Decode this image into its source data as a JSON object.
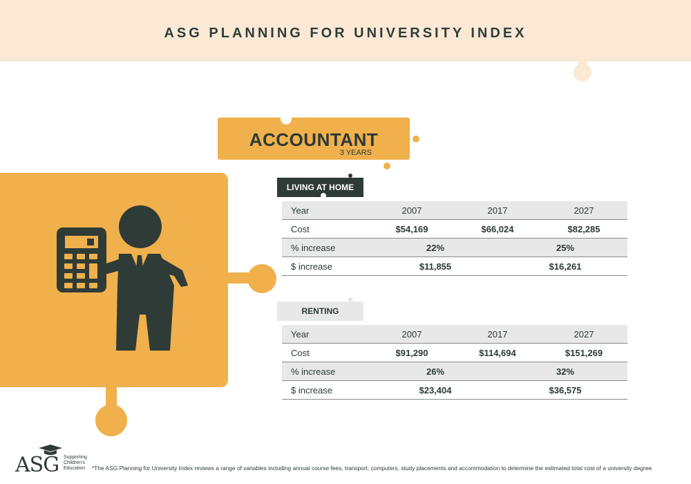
{
  "header": {
    "title": "ASG PLANNING FOR UNIVERSITY INDEX"
  },
  "career": {
    "title": "ACCOUNTANT",
    "years": "3 YEARS"
  },
  "living_at_home": {
    "label": "LIVING AT HOME",
    "headers": [
      "Year",
      "2007",
      "2017",
      "2027"
    ],
    "cost": {
      "label": "Cost",
      "values": [
        "$54,169",
        "$66,024",
        "$82,285"
      ]
    },
    "pct_increase": {
      "label": "% increase",
      "values": [
        "22%",
        "25%"
      ]
    },
    "dollar_increase": {
      "label": "$ increase",
      "values": [
        "$11,855",
        "$16,261"
      ]
    }
  },
  "renting": {
    "label": "RENTING",
    "headers": [
      "Year",
      "2007",
      "2017",
      "2027"
    ],
    "cost": {
      "label": "Cost",
      "values": [
        "$91,290",
        "$114,694",
        "$151,269"
      ]
    },
    "pct_increase": {
      "label": "% increase",
      "values": [
        "26%",
        "32%"
      ]
    },
    "dollar_increase": {
      "label": "$ increase",
      "values": [
        "$23,404",
        "$36,575"
      ]
    }
  },
  "logo": {
    "text": "ASG",
    "tagline": "Supporting Children's Education"
  },
  "footnote": "*The ASG Planning for University Index reviews a range of variables including annual course fees, transport, computers, study placements and accommodation to determine the estimated total cost of a university degree.",
  "colors": {
    "orange": "#f0b04c",
    "dark": "#2f3b37",
    "cream": "#fbe9d5",
    "grey": "#e8e8e8"
  },
  "icons": [
    "accountant-with-calculator-icon",
    "graduation-cap-icon"
  ]
}
